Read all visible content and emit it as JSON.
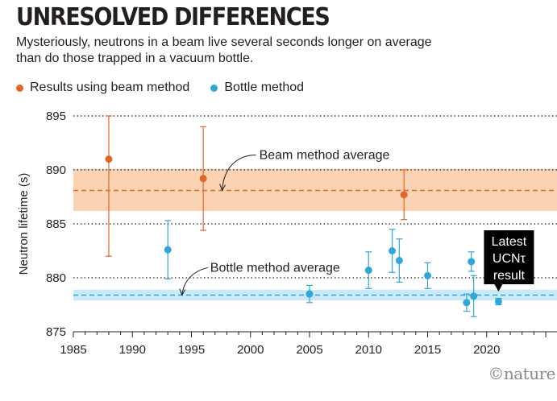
{
  "header": {
    "title": "UNRESOLVED DIFFERENCES",
    "subtitle": "Mysteriously, neutrons in a beam live several seconds longer on average than do those trapped in a vacuum bottle."
  },
  "legend": {
    "beam_label": "Results using beam method",
    "bottle_label": "Bottle method"
  },
  "credit": "©nature",
  "colors": {
    "beam": "#e4652b",
    "beam_band": "#f9d3b2",
    "bottle": "#2fa7d9",
    "bottle_band": "#cbe9f6",
    "text": "#231f20"
  },
  "chart_data": {
    "type": "scatter",
    "title": "UNRESOLVED DIFFERENCES",
    "ylabel": "Neutron lifetime (s)",
    "xlabel": "",
    "xlim": [
      1985,
      2025
    ],
    "ylim": [
      875,
      895
    ],
    "xticks": [
      1985,
      1990,
      1995,
      2000,
      2005,
      2010,
      2015,
      2020
    ],
    "yticks": [
      875,
      880,
      885,
      890,
      895
    ],
    "grid": "horizontal dotted",
    "series": [
      {
        "name": "Results using beam method",
        "color": "#e4652b",
        "points": [
          {
            "x": 1988,
            "y": 891.0,
            "lo": 882.0,
            "hi": 895.0
          },
          {
            "x": 1996,
            "y": 889.2,
            "lo": 884.4,
            "hi": 894.0
          },
          {
            "x": 2013,
            "y": 887.7,
            "lo": 885.4,
            "hi": 890.0
          }
        ],
        "average": 888.1,
        "band": [
          886.2,
          890.1
        ],
        "average_label": "Beam method average"
      },
      {
        "name": "Bottle method",
        "color": "#2fa7d9",
        "points": [
          {
            "x": 1993,
            "y": 882.6,
            "lo": 879.9,
            "hi": 885.3
          },
          {
            "x": 2005,
            "y": 878.5,
            "lo": 877.7,
            "hi": 879.3
          },
          {
            "x": 2010,
            "y": 880.7,
            "lo": 879.0,
            "hi": 882.4
          },
          {
            "x": 2012,
            "y": 882.5,
            "lo": 880.5,
            "hi": 884.5
          },
          {
            "x": 2012.6,
            "y": 881.6,
            "lo": 879.6,
            "hi": 883.6
          },
          {
            "x": 2015,
            "y": 880.2,
            "lo": 879.0,
            "hi": 881.4
          },
          {
            "x": 2018.3,
            "y": 877.7,
            "lo": 876.9,
            "hi": 878.5
          },
          {
            "x": 2018.7,
            "y": 881.5,
            "lo": 880.6,
            "hi": 882.4
          },
          {
            "x": 2018.9,
            "y": 878.3,
            "lo": 876.4,
            "hi": 880.2
          },
          {
            "x": 2021,
            "y": 877.8,
            "lo": 877.5,
            "hi": 878.1
          }
        ],
        "average": 878.4,
        "band": [
          877.9,
          878.9
        ],
        "average_label": "Bottle method average"
      }
    ],
    "annotations": [
      {
        "text": "Latest UCNτ result",
        "lines": [
          "Latest",
          "UCNτ",
          "result"
        ],
        "x": 2021,
        "y": 877.8
      }
    ]
  }
}
